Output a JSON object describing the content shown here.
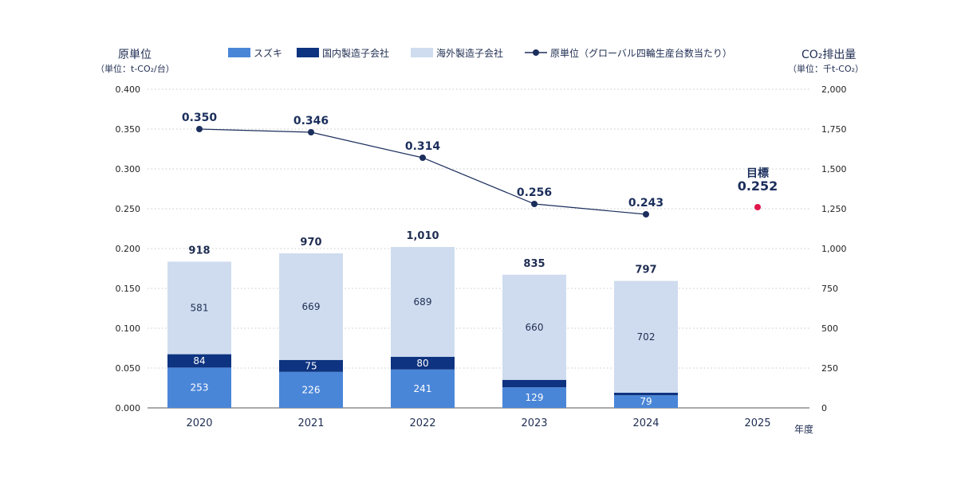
{
  "chart_data": {
    "type": "bar",
    "title": "",
    "left_axis": {
      "title": "原単位",
      "unit": "（単位：t-CO₂/台）",
      "ylim": [
        0,
        0.4
      ],
      "ticks": [
        "0.000",
        "0.050",
        "0.100",
        "0.150",
        "0.200",
        "0.250",
        "0.300",
        "0.350",
        "0.400"
      ]
    },
    "right_axis": {
      "title": "CO₂排出量",
      "unit": "（単位：千t-CO₂）",
      "ylim": [
        0,
        2000
      ],
      "ticks": [
        "0",
        "250",
        "500",
        "750",
        "1,000",
        "1,250",
        "1,500",
        "1,750",
        "2,000"
      ]
    },
    "xlabel": "年度",
    "categories": [
      "2020",
      "2021",
      "2022",
      "2023",
      "2024",
      "2025"
    ],
    "series": [
      {
        "name": "スズキ",
        "color": "#4a86d8",
        "values": [
          253,
          226,
          241,
          129,
          79,
          null
        ]
      },
      {
        "name": "国内製造子会社",
        "color": "#0e3380",
        "values": [
          84,
          75,
          80,
          47,
          16,
          null
        ]
      },
      {
        "name": "海外製造子会社",
        "color": "#cfdcef",
        "values": [
          581,
          669,
          689,
          660,
          702,
          null
        ]
      }
    ],
    "totals": [
      "918",
      "970",
      "1,010",
      "835",
      "797",
      ""
    ],
    "line": {
      "name": "原単位（グローバル四輪生産台数当たり）",
      "color": "#1b2e5c",
      "values": [
        0.35,
        0.346,
        0.314,
        0.256,
        0.243
      ],
      "labels": [
        "0.350",
        "0.346",
        "0.314",
        "0.256",
        "0.243"
      ]
    },
    "target": {
      "label": "目標",
      "value": 0.252,
      "value_label": "0.252",
      "year": "2025",
      "color": "#e0174a"
    },
    "grid": true,
    "legend_position": "top"
  }
}
